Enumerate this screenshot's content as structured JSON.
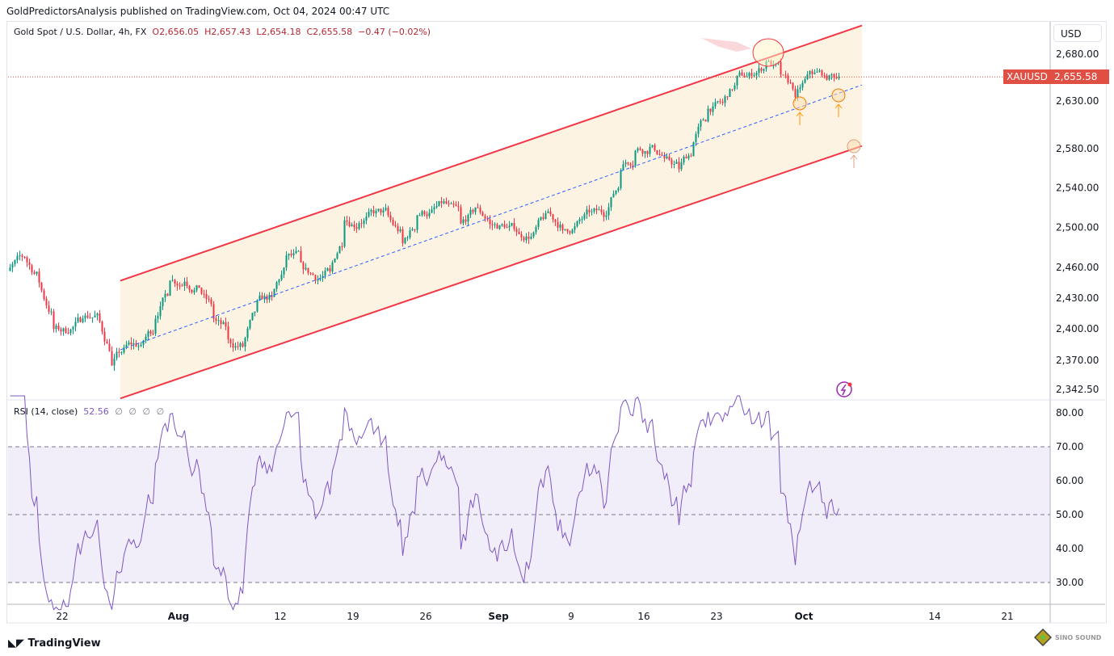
{
  "published": "GoldPredictorsAnalysis published on TradingView.com, Oct 04, 2024 00:47 UTC",
  "legend": {
    "symbol": "Gold Spot / U.S. Dollar, 4h, FX",
    "open": "O2,656.05",
    "high": "H2,657.43",
    "low": "L2,654.18",
    "close": "C2,655.58",
    "change": "−0.47 (−0.02%)"
  },
  "price_axis": {
    "currency": "USD",
    "ticker": "XAUUSD",
    "last_price": "2,655.58"
  },
  "rsi": {
    "label": "RSI (14, close)",
    "value": "52.56",
    "placeholders": [
      "∅",
      "∅",
      "∅",
      "∅"
    ]
  },
  "footer": {
    "brand": "TradingView",
    "watermark": "SINO SOUND"
  },
  "colors": {
    "up": "#089981",
    "down": "#f23645",
    "channel": "#f23645",
    "channel_fill": "#fdf3e3",
    "midline": "#2962ff",
    "rsi_line": "#7e57c2",
    "last_price": "#e04f44"
  },
  "chart_data": [
    {
      "type": "candlestick",
      "scale": "log",
      "ylim": [
        2330,
        2715
      ],
      "yticks": [
        "2,680.00",
        "2,630.00",
        "2,580.00",
        "2,540.00",
        "2,500.00",
        "2,460.00",
        "2,430.00",
        "2,400.00",
        "2,370.00",
        "2,342.50"
      ],
      "ytick_values": [
        2680,
        2630,
        2580,
        2540,
        2500,
        2460,
        2430,
        2400,
        2370,
        2342.5
      ],
      "xticks": [
        "22",
        "Aug",
        "12",
        "19",
        "26",
        "Sep",
        "9",
        "16",
        "23",
        "Oct",
        "14",
        "21"
      ],
      "xtick_dates": [
        "2024-07-22",
        "2024-08-01",
        "2024-08-12",
        "2024-08-19",
        "2024-08-26",
        "2024-09-02",
        "2024-09-09",
        "2024-09-16",
        "2024-09-23",
        "2024-10-01",
        "2024-10-14",
        "2024-10-21"
      ],
      "daily_closes": [
        [
          "2024-07-16",
          2460
        ],
        [
          "2024-07-17",
          2470
        ],
        [
          "2024-07-18",
          2445
        ],
        [
          "2024-07-19",
          2400
        ],
        [
          "2024-07-22",
          2396
        ],
        [
          "2024-07-23",
          2410
        ],
        [
          "2024-07-24",
          2415
        ],
        [
          "2024-07-25",
          2365
        ],
        [
          "2024-07-26",
          2385
        ],
        [
          "2024-07-29",
          2385
        ],
        [
          "2024-07-30",
          2410
        ],
        [
          "2024-07-31",
          2447
        ],
        [
          "2024-08-01",
          2446
        ],
        [
          "2024-08-02",
          2440
        ],
        [
          "2024-08-05",
          2410
        ],
        [
          "2024-08-06",
          2390
        ],
        [
          "2024-08-07",
          2383
        ],
        [
          "2024-08-08",
          2428
        ],
        [
          "2024-08-09",
          2431
        ],
        [
          "2024-08-12",
          2472
        ],
        [
          "2024-08-13",
          2465
        ],
        [
          "2024-08-14",
          2447
        ],
        [
          "2024-08-15",
          2456
        ],
        [
          "2024-08-16",
          2507
        ],
        [
          "2024-08-19",
          2504
        ],
        [
          "2024-08-20",
          2514
        ],
        [
          "2024-08-21",
          2512
        ],
        [
          "2024-08-22",
          2484
        ],
        [
          "2024-08-23",
          2512
        ],
        [
          "2024-08-26",
          2518
        ],
        [
          "2024-08-27",
          2524
        ],
        [
          "2024-08-28",
          2504
        ],
        [
          "2024-08-29",
          2520
        ],
        [
          "2024-08-30",
          2503
        ],
        [
          "2024-09-02",
          2500
        ],
        [
          "2024-09-03",
          2493
        ],
        [
          "2024-09-04",
          2495
        ],
        [
          "2024-09-05",
          2516
        ],
        [
          "2024-09-06",
          2497
        ],
        [
          "2024-09-09",
          2506
        ],
        [
          "2024-09-10",
          2516
        ],
        [
          "2024-09-11",
          2512
        ],
        [
          "2024-09-12",
          2558
        ],
        [
          "2024-09-13",
          2578
        ],
        [
          "2024-09-16",
          2582
        ],
        [
          "2024-09-17",
          2570
        ],
        [
          "2024-09-18",
          2559
        ],
        [
          "2024-09-19",
          2587
        ],
        [
          "2024-09-20",
          2622
        ],
        [
          "2024-09-23",
          2628
        ],
        [
          "2024-09-24",
          2657
        ],
        [
          "2024-09-25",
          2657
        ],
        [
          "2024-09-26",
          2672
        ],
        [
          "2024-09-27",
          2658
        ],
        [
          "2024-09-30",
          2634
        ],
        [
          "2024-10-01",
          2662
        ],
        [
          "2024-10-02",
          2657
        ],
        [
          "2024-10-03",
          2656
        ]
      ],
      "channel": {
        "upper": [
          [
            "2024-07-26",
            2447
          ],
          [
            "2024-10-07",
            2711
          ]
        ],
        "lower": [
          [
            "2024-07-26",
            2334
          ],
          [
            "2024-10-07",
            2583
          ]
        ],
        "mid": [
          [
            "2024-07-26",
            2380
          ],
          [
            "2024-10-07",
            2647
          ]
        ]
      },
      "last_price": 2655.58
    },
    {
      "type": "line",
      "name": "RSI (14, close)",
      "ylim": [
        25,
        83
      ],
      "yticks": [
        "80.00",
        "70.00",
        "60.00",
        "50.00",
        "40.00",
        "30.00"
      ],
      "ytick_values": [
        80,
        70,
        60,
        50,
        40,
        30
      ],
      "bands": [
        30,
        50,
        70
      ],
      "last": 52.56
    }
  ]
}
